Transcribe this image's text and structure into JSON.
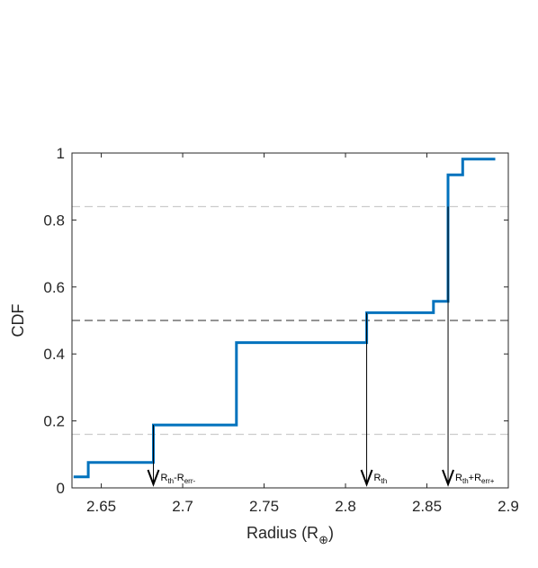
{
  "chart_data": {
    "type": "line",
    "subtype": "step-cdf",
    "xlabel": "Radius (R",
    "xlabel_symbol": "⊕",
    "xlabel_close": ")",
    "ylabel": "CDF",
    "xlim": [
      2.632,
      2.9
    ],
    "ylim": [
      0,
      1
    ],
    "xticks": [
      2.65,
      2.7,
      2.75,
      2.8,
      2.85,
      2.9
    ],
    "xtick_labels": [
      "2.65",
      "2.7",
      "2.75",
      "2.8",
      "2.85",
      "2.9"
    ],
    "yticks": [
      0,
      0.2,
      0.4,
      0.6,
      0.8,
      1
    ],
    "ytick_labels": [
      "0",
      "0.2",
      "0.4",
      "0.6",
      "0.8",
      "1"
    ],
    "grid": false,
    "series": [
      {
        "color": "#0072BD",
        "x": [
          2.633,
          2.642,
          2.642,
          2.682,
          2.682,
          2.733,
          2.733,
          2.813,
          2.813,
          2.854,
          2.854,
          2.863,
          2.863,
          2.872,
          2.872,
          2.892
        ],
        "y": [
          0.033,
          0.033,
          0.076,
          0.076,
          0.188,
          0.188,
          0.434,
          0.434,
          0.523,
          0.523,
          0.557,
          0.557,
          0.935,
          0.935,
          0.982,
          0.982
        ]
      }
    ],
    "hlines": [
      {
        "y": 0.84,
        "color": "#cccccc",
        "style": "dashed"
      },
      {
        "y": 0.5,
        "color": "#555555",
        "style": "dashed"
      },
      {
        "y": 0.16,
        "color": "#cccccc",
        "style": "dashed"
      }
    ],
    "annotations": [
      {
        "x": 2.682,
        "y_top": 0.188,
        "parts": [
          [
            "R",
            ""
          ],
          [
            "th",
            "sub"
          ],
          [
            "-R",
            ""
          ],
          [
            "err-",
            "sub"
          ]
        ]
      },
      {
        "x": 2.813,
        "y_top": 0.523,
        "parts": [
          [
            "R",
            ""
          ],
          [
            "th",
            "sub"
          ]
        ]
      },
      {
        "x": 2.863,
        "y_top": 0.84,
        "parts": [
          [
            "R",
            ""
          ],
          [
            "th",
            "sub"
          ],
          [
            "+R",
            ""
          ],
          [
            "err+",
            "sub"
          ]
        ]
      }
    ]
  }
}
